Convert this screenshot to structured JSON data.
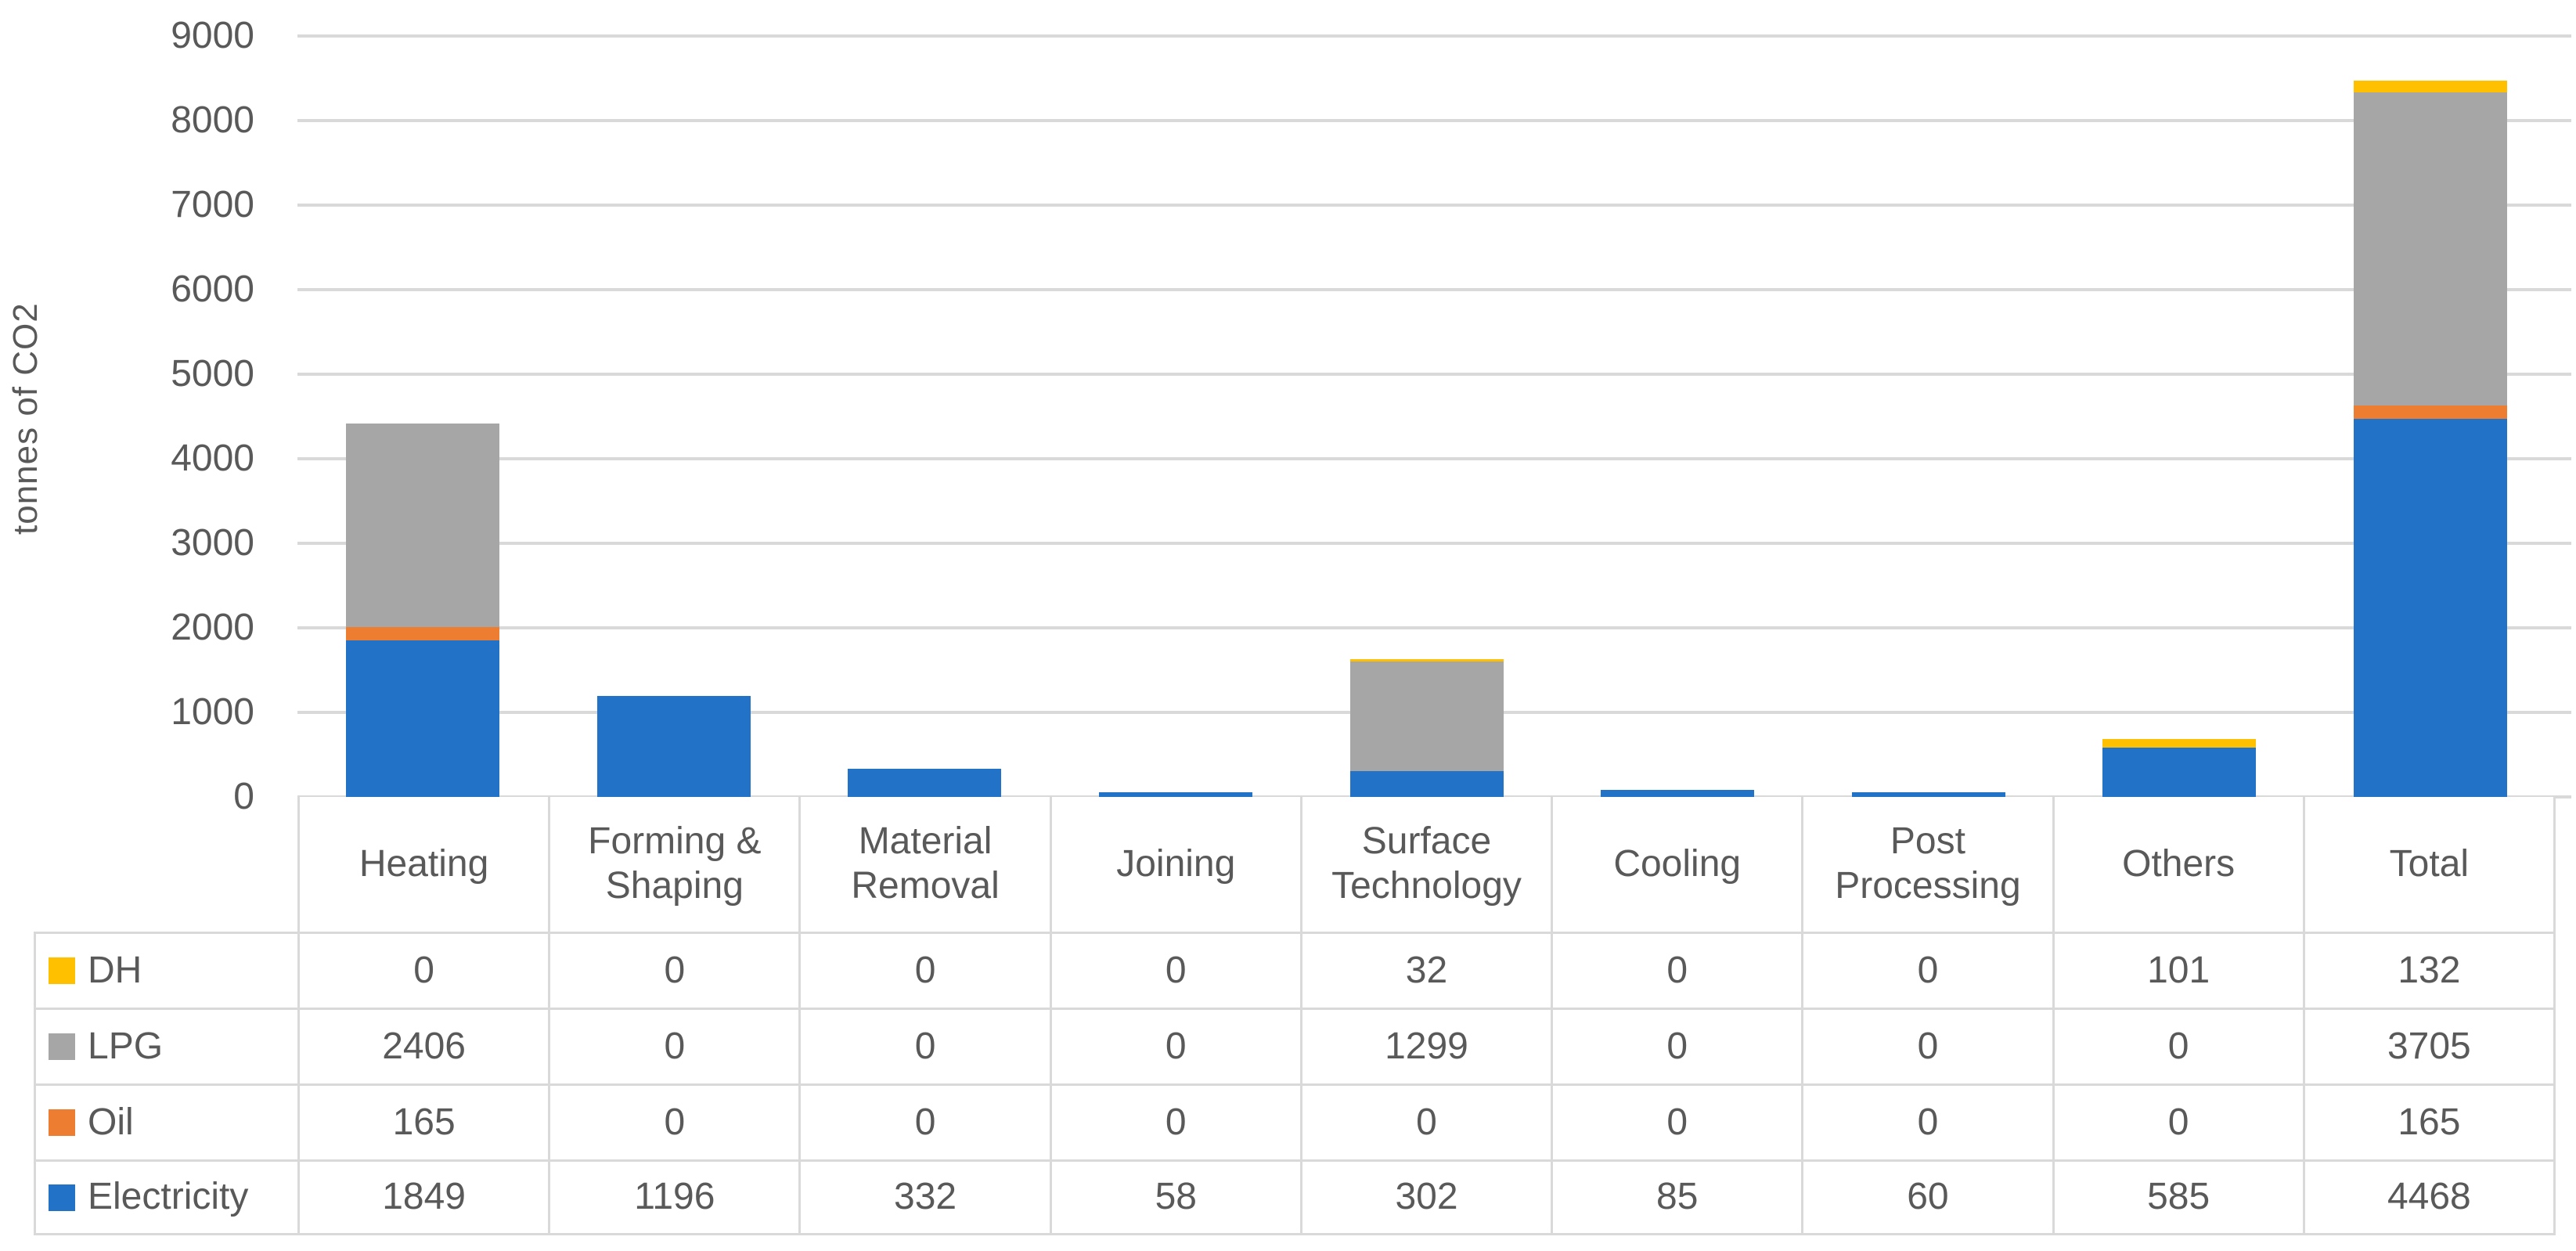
{
  "chart_data": {
    "type": "bar",
    "stacked": true,
    "title": "",
    "xlabel": "",
    "ylabel": "tonnes of CO2",
    "ylim": [
      0,
      9000
    ],
    "y_ticks": [
      0,
      1000,
      2000,
      3000,
      4000,
      5000,
      6000,
      7000,
      8000,
      9000
    ],
    "grid": true,
    "legend_position": "data-table-left",
    "categories": [
      "Heating",
      "Forming & Shaping",
      "Material Removal",
      "Joining",
      "Surface Technology",
      "Cooling",
      "Post Processing",
      "Others",
      "Total"
    ],
    "series": [
      {
        "name": "DH",
        "color": "#FFC000",
        "values": [
          0,
          0,
          0,
          0,
          32,
          0,
          0,
          101,
          132
        ]
      },
      {
        "name": "LPG",
        "color": "#A6A6A6",
        "values": [
          2406,
          0,
          0,
          0,
          1299,
          0,
          0,
          0,
          3705
        ]
      },
      {
        "name": "Oil",
        "color": "#ED7D31",
        "values": [
          165,
          0,
          0,
          0,
          0,
          0,
          0,
          0,
          165
        ]
      },
      {
        "name": "Electricity",
        "color": "#2272C8",
        "values": [
          1849,
          1196,
          332,
          58,
          302,
          85,
          60,
          585,
          4468
        ]
      }
    ],
    "stack_order_bottom_to_top": [
      "Electricity",
      "Oil",
      "LPG",
      "DH"
    ],
    "colors": {
      "gridline": "#D9D9D9",
      "table_border": "#D9D9D9",
      "text": "#595959",
      "background": "#FFFFFF"
    }
  }
}
